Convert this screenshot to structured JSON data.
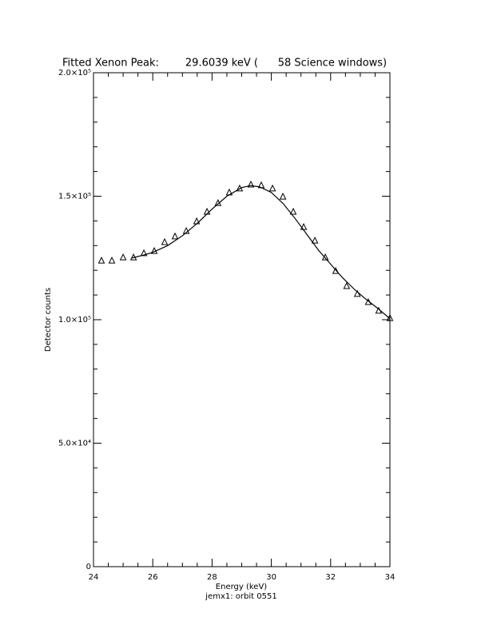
{
  "chart_data": {
    "type": "scatter",
    "title": "Fitted Xenon Peak:        29.6039 keV (      58 Science windows)",
    "x_label": "Energy (keV)",
    "y_label": "Detector counts",
    "subtitle": "jemx1: orbit 0551",
    "xlim": [
      24,
      34
    ],
    "xticks": [
      24,
      26,
      28,
      30,
      32,
      34
    ],
    "ylim": [
      0,
      200000
    ],
    "yticks": [
      0,
      {
        "value": 50000,
        "label": "5.0×10⁴"
      },
      {
        "value": 100000,
        "label": "1.0×10⁵"
      },
      {
        "value": 150000,
        "label": "1.5×10⁵"
      },
      {
        "value": 200000,
        "label": "2.0×10⁵"
      }
    ],
    "series": [
      {
        "type": "scatter",
        "marker": "triangle",
        "color": "#000000",
        "x": [
          24.27,
          24.62,
          25.0,
          25.35,
          25.7,
          26.05,
          26.4,
          26.75,
          27.13,
          27.48,
          27.83,
          28.2,
          28.58,
          28.93,
          29.31,
          29.66,
          30.04,
          30.39,
          30.74,
          31.09,
          31.47,
          31.82,
          32.17,
          32.54,
          32.9,
          33.27,
          33.62,
          34.0
        ],
        "values": [
          123900,
          123900,
          125200,
          125200,
          126900,
          127800,
          131400,
          133700,
          135900,
          139800,
          143700,
          147200,
          151500,
          153100,
          154700,
          154400,
          153100,
          149800,
          143700,
          137500,
          132000,
          125200,
          119700,
          113600,
          110400,
          107100,
          103600,
          100600
        ]
      },
      {
        "type": "line",
        "color": "#000000",
        "x": [
          25.3,
          25.7,
          26.0,
          26.5,
          27.0,
          27.5,
          28.0,
          28.5,
          29.0,
          29.3,
          29.6,
          30.0,
          30.4,
          30.8,
          31.2,
          31.6,
          32.0,
          32.4,
          32.8,
          33.2,
          33.6,
          34.0
        ],
        "values": [
          125000,
          126200,
          127300,
          130000,
          134000,
          139000,
          144800,
          150000,
          153500,
          154300,
          153800,
          151500,
          147000,
          141000,
          134500,
          128000,
          122500,
          117000,
          112300,
          108200,
          104500,
          100400
        ]
      }
    ]
  }
}
